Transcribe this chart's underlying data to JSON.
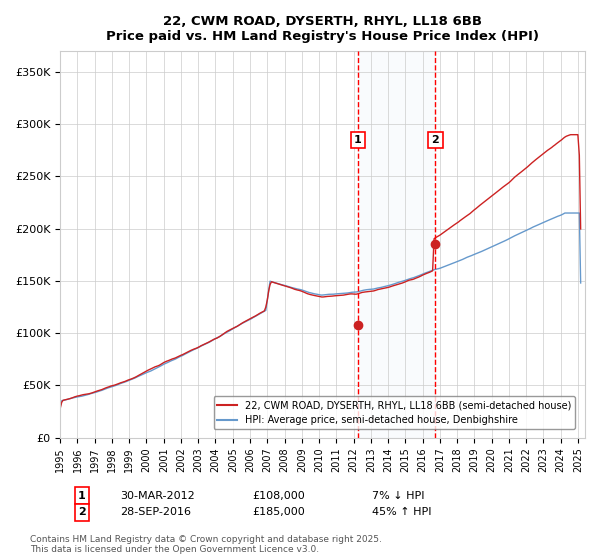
{
  "title": "22, CWM ROAD, DYSERTH, RHYL, LL18 6BB",
  "subtitle": "Price paid vs. HM Land Registry's House Price Index (HPI)",
  "ylabel": "",
  "ylim": [
    0,
    370000
  ],
  "yticks": [
    0,
    50000,
    100000,
    150000,
    200000,
    250000,
    300000,
    350000
  ],
  "ytick_labels": [
    "£0",
    "£50K",
    "£100K",
    "£150K",
    "£200K",
    "£250K",
    "£300K",
    "£350K"
  ],
  "hpi_color": "#6699cc",
  "price_color": "#cc2222",
  "transaction1_date": "2012-03-30",
  "transaction1_price": 108000,
  "transaction1_label": "1",
  "transaction2_date": "2016-09-28",
  "transaction2_price": 185000,
  "transaction2_label": "2",
  "legend_property": "22, CWM ROAD, DYSERTH, RHYL, LL18 6BB (semi-detached house)",
  "legend_hpi": "HPI: Average price, semi-detached house, Denbighshire",
  "annotation1": "1    30-MAR-2012         £108,000         7% ↓ HPI",
  "annotation2": "2    28-SEP-2016         £185,000         45% ↑ HPI",
  "footer": "Contains HM Land Registry data © Crown copyright and database right 2025.\nThis data is licensed under the Open Government Licence v3.0.",
  "background_color": "#ffffff",
  "grid_color": "#cccccc",
  "highlight_color": "#dce9f5"
}
